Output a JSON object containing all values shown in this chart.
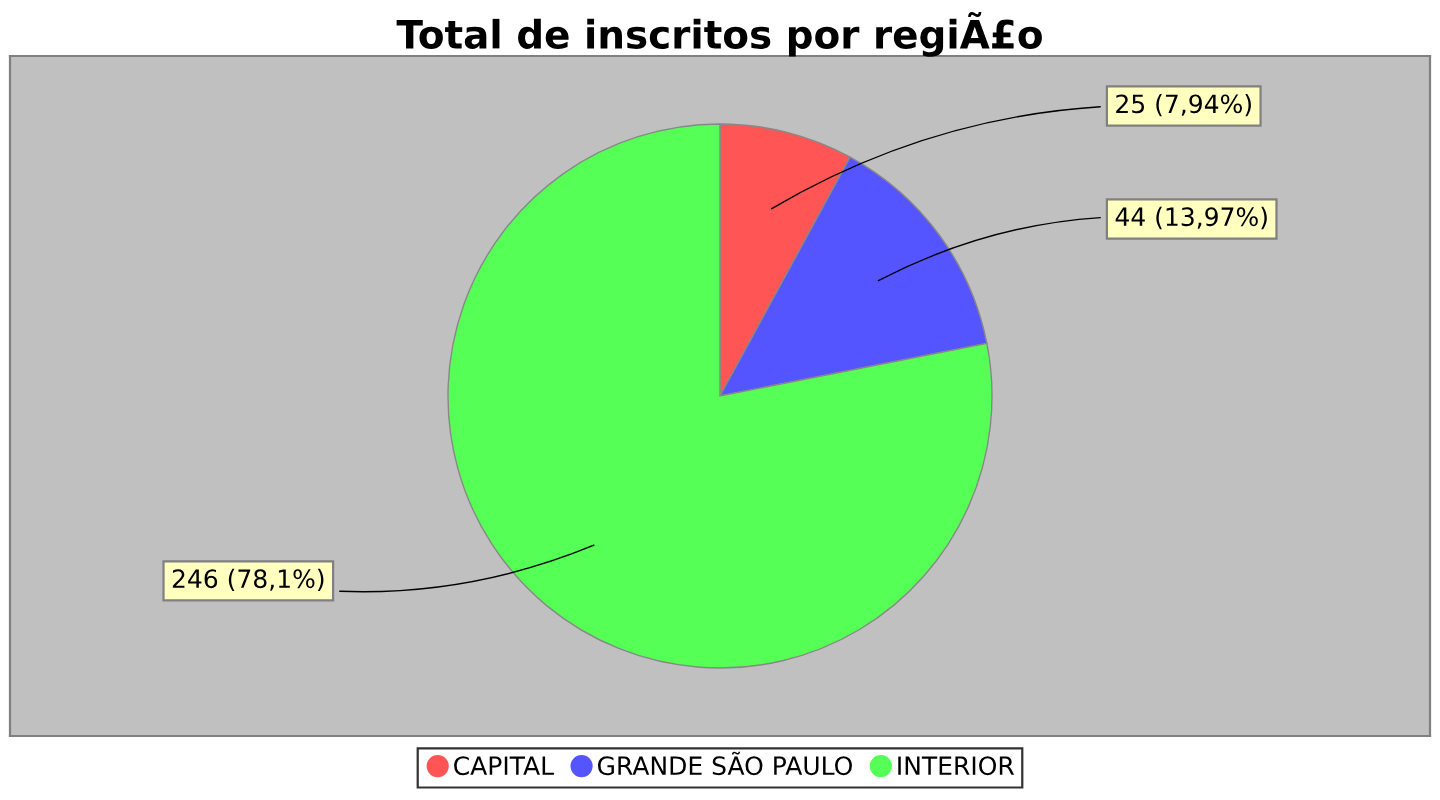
{
  "chart_data": {
    "type": "pie",
    "title": "Total de inscritos por regiÃ£o",
    "categories": [
      "CAPITAL",
      "GRANDE SÃO PAULO",
      "INTERIOR"
    ],
    "values": [
      25,
      44,
      246
    ],
    "colors": [
      "#ff5555",
      "#5555ff",
      "#55ff55"
    ],
    "value_labels": [
      "25 (7,94%)",
      "44 (13,97%)",
      "246 (78,1%)"
    ],
    "legend": "bottom"
  }
}
